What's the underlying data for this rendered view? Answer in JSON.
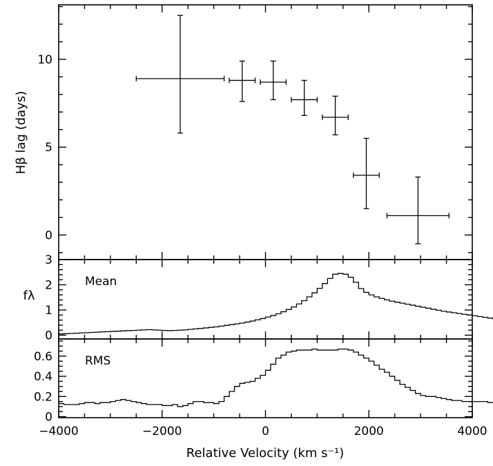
{
  "chart_data": [
    {
      "type": "scatter",
      "xlabel": "Relative Velocity (km s⁻¹)",
      "ylabel": "Hβ lag (days)",
      "xlim": [
        -4000,
        4000
      ],
      "ylim": [
        -1.4,
        13.1
      ],
      "xticks": [
        -4000,
        -2000,
        0,
        2000,
        4000
      ],
      "yticks": [
        0,
        5,
        10
      ],
      "series": [
        {
          "points": [
            {
              "x": -1650,
              "xlo": -2500,
              "xhi": -800,
              "y": 8.9,
              "ylo": 5.8,
              "yhi": 12.5
            },
            {
              "x": -450,
              "xlo": -700,
              "xhi": -200,
              "y": 8.8,
              "ylo": 7.6,
              "yhi": 9.9
            },
            {
              "x": 150,
              "xlo": -100,
              "xhi": 400,
              "y": 8.7,
              "ylo": 7.7,
              "yhi": 9.9
            },
            {
              "x": 750,
              "xlo": 500,
              "xhi": 1000,
              "y": 7.7,
              "ylo": 6.8,
              "yhi": 8.8
            },
            {
              "x": 1350,
              "xlo": 1100,
              "xhi": 1600,
              "y": 6.7,
              "ylo": 5.7,
              "yhi": 7.9
            },
            {
              "x": 1950,
              "xlo": 1700,
              "xhi": 2200,
              "y": 3.4,
              "ylo": 1.5,
              "yhi": 5.5
            },
            {
              "x": 2950,
              "xlo": 2350,
              "xhi": 3550,
              "y": 1.1,
              "ylo": -0.5,
              "yhi": 3.3
            }
          ]
        }
      ]
    },
    {
      "type": "line",
      "title": "Mean",
      "ylabel": "fλ",
      "xlim": [
        -4000,
        4000
      ],
      "ylim": [
        -0.15,
        3.0
      ],
      "yticks": [
        0,
        1,
        2,
        3
      ],
      "x_step": 100,
      "x_start": -4000,
      "values": [
        0.05,
        0.06,
        0.07,
        0.08,
        0.09,
        0.1,
        0.11,
        0.12,
        0.13,
        0.14,
        0.15,
        0.16,
        0.17,
        0.18,
        0.19,
        0.2,
        0.21,
        0.22,
        0.21,
        0.2,
        0.19,
        0.18,
        0.19,
        0.2,
        0.21,
        0.23,
        0.25,
        0.27,
        0.29,
        0.31,
        0.33,
        0.36,
        0.39,
        0.42,
        0.45,
        0.48,
        0.52,
        0.56,
        0.61,
        0.66,
        0.72,
        0.78,
        0.85,
        0.93,
        1.02,
        1.12,
        1.24,
        1.37,
        1.52,
        1.68,
        1.86,
        2.05,
        2.25,
        2.42,
        2.45,
        2.42,
        2.3,
        2.1,
        1.85,
        1.7,
        1.6,
        1.52,
        1.46,
        1.4,
        1.35,
        1.31,
        1.27,
        1.23,
        1.19,
        1.15,
        1.11,
        1.07,
        1.03,
        0.99,
        0.95,
        0.92,
        0.89,
        0.86,
        0.83,
        0.8,
        0.77,
        0.74,
        0.71,
        0.68,
        0.64,
        0.6,
        0.56,
        0.52,
        0.48,
        0.45,
        0.42,
        0.39,
        0.36,
        0.33,
        0.31,
        0.3,
        0.29,
        0.28,
        0.27,
        0.26
      ]
    },
    {
      "type": "line",
      "title": "RMS",
      "xlabel": "Relative Velocity (km s⁻¹)",
      "xlim": [
        -4000,
        4000
      ],
      "ylim": [
        -0.01,
        0.77
      ],
      "yticks": [
        0,
        0.2,
        0.4,
        0.6
      ],
      "xticks": [
        -4000,
        -2000,
        0,
        2000,
        4000
      ],
      "x_step": 100,
      "x_start": -4000,
      "values": [
        0.13,
        0.12,
        0.12,
        0.12,
        0.13,
        0.14,
        0.14,
        0.13,
        0.14,
        0.14,
        0.15,
        0.16,
        0.17,
        0.16,
        0.15,
        0.14,
        0.13,
        0.12,
        0.12,
        0.12,
        0.11,
        0.11,
        0.12,
        0.1,
        0.11,
        0.13,
        0.15,
        0.15,
        0.14,
        0.14,
        0.13,
        0.15,
        0.2,
        0.25,
        0.3,
        0.33,
        0.34,
        0.35,
        0.38,
        0.41,
        0.46,
        0.52,
        0.58,
        0.61,
        0.64,
        0.65,
        0.66,
        0.66,
        0.66,
        0.67,
        0.66,
        0.66,
        0.66,
        0.66,
        0.67,
        0.67,
        0.66,
        0.64,
        0.61,
        0.58,
        0.55,
        0.51,
        0.47,
        0.44,
        0.4,
        0.36,
        0.32,
        0.29,
        0.26,
        0.23,
        0.21,
        0.2,
        0.2,
        0.19,
        0.18,
        0.17,
        0.16,
        0.16,
        0.15,
        0.15,
        0.15,
        0.15,
        0.15,
        0.14,
        0.14,
        0.13,
        0.13,
        0.13,
        0.12,
        0.12,
        0.12,
        0.11,
        0.12,
        0.13,
        0.13,
        0.13,
        0.12,
        0.12,
        0.11,
        0.11
      ]
    }
  ],
  "labels": {
    "ylabel_top": "Hβ lag (days)",
    "ylabel_mid": "fλ",
    "xlabel": "Relative Velocity (km s⁻¹)",
    "mean": "Mean",
    "rms": "RMS"
  },
  "colors": {
    "ink": "#000000",
    "background": "#ffffff"
  }
}
